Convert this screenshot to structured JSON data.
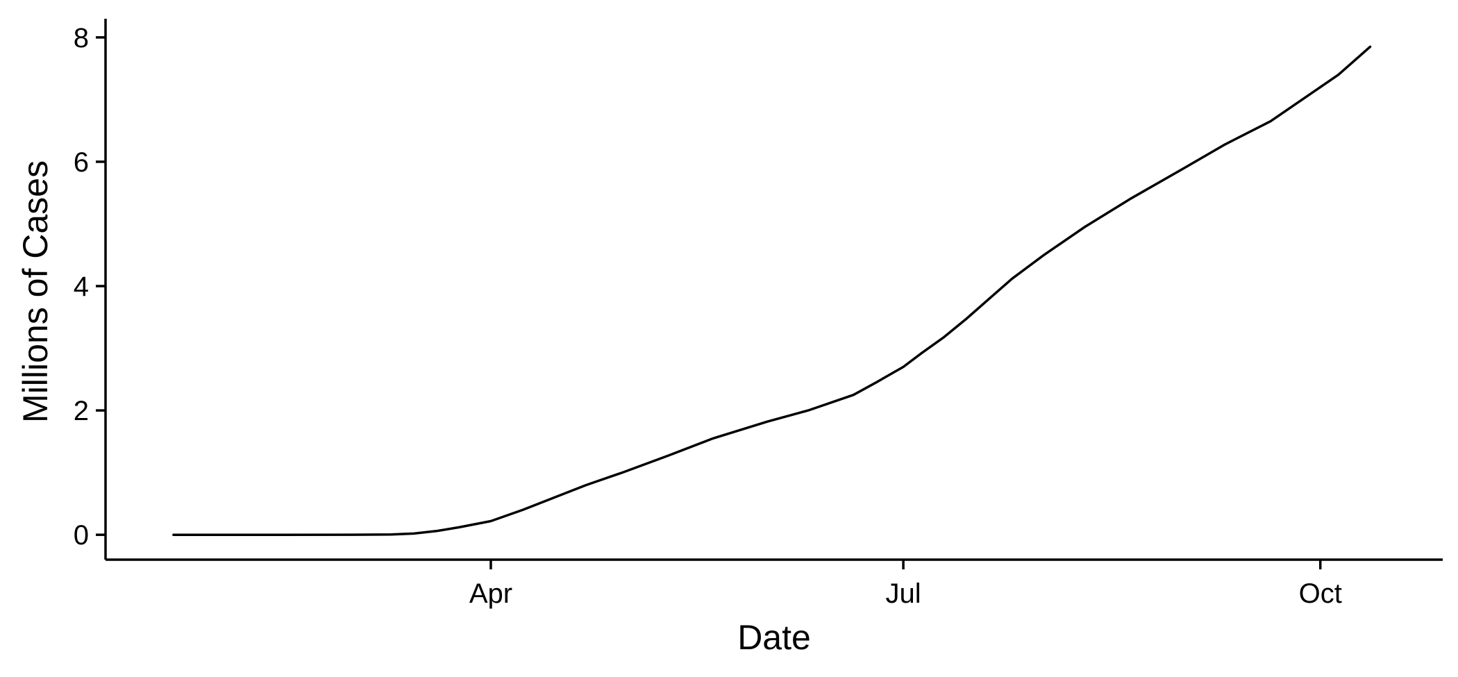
{
  "chart_data": {
    "type": "line",
    "xlabel": "Date",
    "ylabel": "Millions of Cases",
    "xlim": [
      "2020-01-07",
      "2020-10-28"
    ],
    "ylim": [
      -0.4,
      8.3
    ],
    "x_ticks": [
      {
        "date": "2020-04-01",
        "label": "Apr"
      },
      {
        "date": "2020-07-01",
        "label": "Jul"
      },
      {
        "date": "2020-10-01",
        "label": "Oct"
      }
    ],
    "y_ticks": [
      0,
      2,
      4,
      6,
      8
    ],
    "grid": false,
    "line_color": "#000000",
    "series": [
      {
        "x": [
          "2020-01-22",
          "2020-02-15",
          "2020-03-01",
          "2020-03-10",
          "2020-03-15",
          "2020-03-20",
          "2020-03-25",
          "2020-04-01",
          "2020-04-08",
          "2020-04-15",
          "2020-04-22",
          "2020-04-30",
          "2020-05-10",
          "2020-05-20",
          "2020-06-01",
          "2020-06-10",
          "2020-06-20",
          "2020-06-25",
          "2020-07-01",
          "2020-07-05",
          "2020-07-10",
          "2020-07-15",
          "2020-07-20",
          "2020-07-25",
          "2020-08-01",
          "2020-08-10",
          "2020-08-20",
          "2020-09-01",
          "2020-09-10",
          "2020-09-20",
          "2020-10-01",
          "2020-10-05",
          "2020-10-12"
        ],
        "y": [
          0,
          0,
          0.001,
          0.005,
          0.02,
          0.06,
          0.12,
          0.22,
          0.4,
          0.6,
          0.8,
          1.0,
          1.27,
          1.55,
          1.82,
          2.0,
          2.25,
          2.45,
          2.7,
          2.92,
          3.18,
          3.48,
          3.8,
          4.12,
          4.5,
          4.95,
          5.4,
          5.9,
          6.28,
          6.65,
          7.2,
          7.4,
          7.85
        ]
      }
    ]
  }
}
